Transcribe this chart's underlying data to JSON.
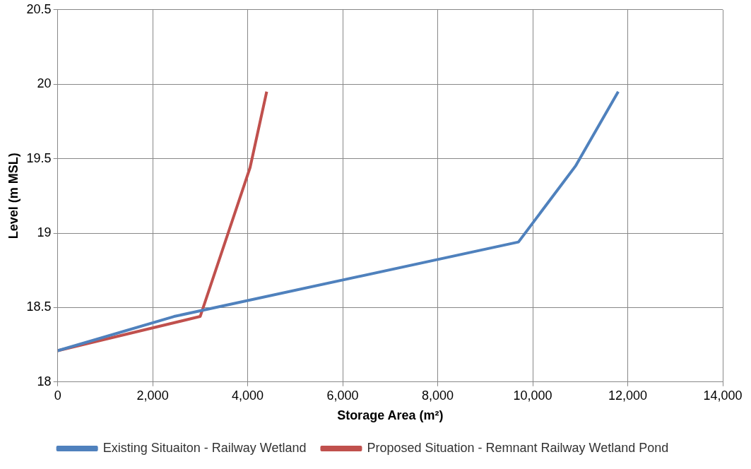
{
  "chart_data": {
    "type": "line",
    "xlabel": "Storage Area (m²)",
    "ylabel": "Level (m MSL)",
    "xlim": [
      0,
      14000
    ],
    "xticks": [
      {
        "value": 0,
        "label": "0"
      },
      {
        "value": 2000,
        "label": "2,000"
      },
      {
        "value": 4000,
        "label": "4,000"
      },
      {
        "value": 6000,
        "label": "6,000"
      },
      {
        "value": 8000,
        "label": "8,000"
      },
      {
        "value": 10000,
        "label": "10,000"
      },
      {
        "value": 12000,
        "label": "12,000"
      },
      {
        "value": 14000,
        "label": "14,000"
      }
    ],
    "ylim": [
      18,
      20.5
    ],
    "yticks": [
      18,
      18.5,
      19,
      19.5,
      20,
      20.5
    ],
    "grid": true,
    "legend": "bottom",
    "marker": "none",
    "line_style": "solid",
    "series": [
      {
        "name": "Existing Situaiton - Railway Wetland",
        "color": "#4f81bd",
        "x": [
          0,
          2450,
          9700,
          10900,
          11800
        ],
        "values": [
          18.21,
          18.44,
          18.94,
          19.45,
          19.95
        ]
      },
      {
        "name": "Proposed Situation - Remnant Railway Wetland Pond",
        "color": "#c0504d",
        "x": [
          0,
          3000,
          4050,
          4400
        ],
        "values": [
          18.21,
          18.44,
          19.44,
          19.95
        ]
      }
    ]
  }
}
